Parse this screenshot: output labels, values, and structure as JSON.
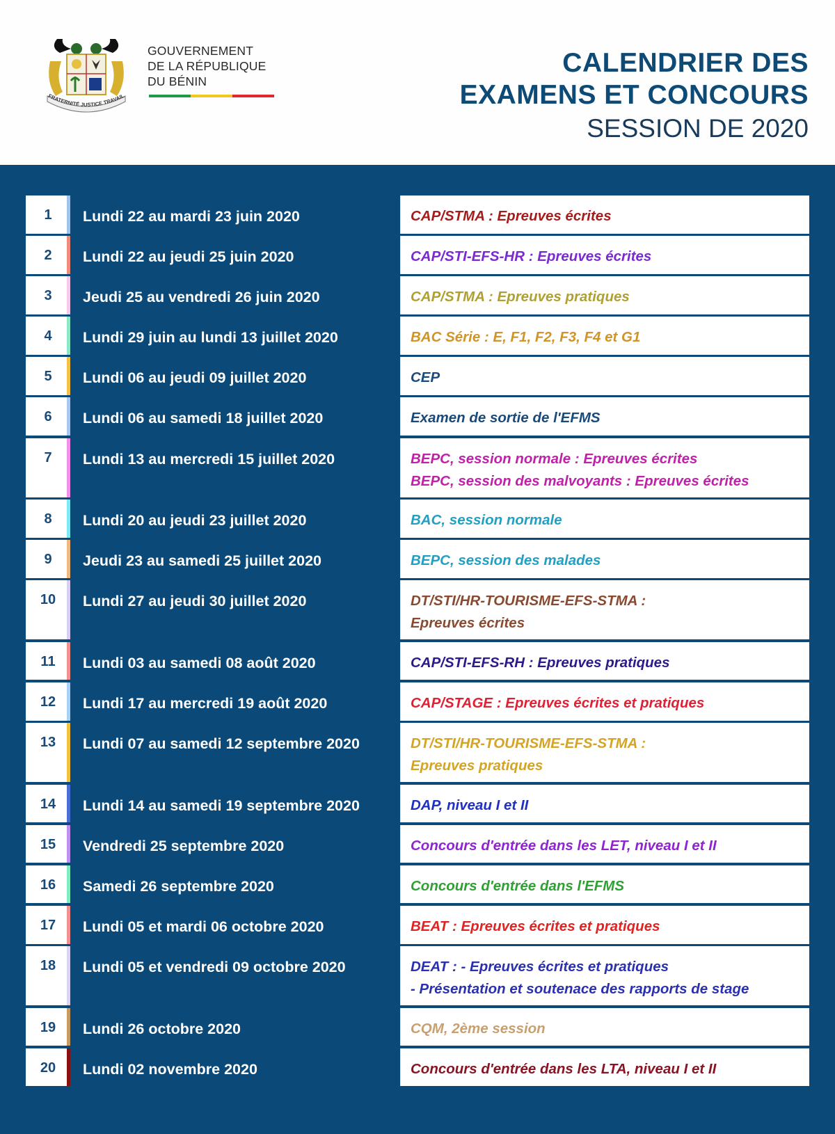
{
  "header": {
    "government": [
      "GOUVERNEMENT",
      "DE LA RÉPUBLIQUE",
      "DU BÉNIN"
    ],
    "flag_colors": [
      "#1f9a4a",
      "#f2c81e",
      "#e0262e"
    ],
    "title_line1": "CALENDRIER DES",
    "title_line2": "EXAMENS ET CONCOURS",
    "title_line3": "SESSION DE 2020",
    "crest_motto": "FRATERNITÉ JUSTICE TRAVAIL"
  },
  "colors": {
    "background": "#0b4a78",
    "title": "#0d4a76"
  },
  "rows": [
    {
      "num": "1",
      "date": "Lundi 22 au mardi 23 juin 2020",
      "event": "CAP/STMA : Epreuves écrites",
      "color": "#a51c1c",
      "accent": "#9ec4ee"
    },
    {
      "num": "2",
      "date": "Lundi 22 au jeudi 25 juin 2020",
      "event": "CAP/STI-EFS-HR : Epreuves écrites",
      "color": "#7a2ad0",
      "accent": "#f08a7a"
    },
    {
      "num": "3",
      "date": "Jeudi 25 au vendredi 26 juin 2020",
      "event": "CAP/STMA : Epreuves pratiques",
      "color": "#b0a032",
      "accent": "#f6c8ec"
    },
    {
      "num": "4",
      "date": "Lundi 29 juin au lundi 13 juillet 2020",
      "event": " BAC Série : E, F1, F2, F3, F4 et G1",
      "color": "#d09428",
      "accent": "#8ae8c8"
    },
    {
      "num": "5",
      "date": "Lundi 06 au jeudi 09 juillet 2020",
      "event": "CEP",
      "color": "#1a4a80",
      "accent": "#f4c048"
    },
    {
      "num": "6",
      "date": "Lundi 06 au samedi 18 juillet 2020",
      "event": "Examen de sortie de l'EFMS",
      "color": "#1a4a7a",
      "accent": "#a8c8f0"
    },
    {
      "num": "7",
      "date": "Lundi 13 au mercredi 15 juillet 2020",
      "event": "BEPC, session normale : Epreuves écrites\nBEPC, session des malvoyants : Epreuves écrites",
      "color": "#c021a8",
      "accent": "#f090e8",
      "double": true
    },
    {
      "num": "8",
      "date": "Lundi 20 au jeudi 23 juillet 2020",
      "event": "BAC, session normale",
      "color": "#22a0c4",
      "accent": "#80e8f0"
    },
    {
      "num": "9",
      "date": "Jeudi 23 au samedi 25 juillet 2020",
      "event": "BEPC, session des malades",
      "color": "#22a0c4",
      "accent": "#f0b880"
    },
    {
      "num": "10",
      "date": "Lundi 27 au jeudi 30 juillet 2020",
      "event": "DT/STI/HR-TOURISME-EFS-STMA :\nEpreuves écrites",
      "color": "#8a4a30",
      "accent": "#d8d0f4",
      "double": true
    },
    {
      "num": "11",
      "date": "Lundi 03 au samedi 08 août 2020",
      "event": "CAP/STI-EFS-RH : Epreuves pratiques",
      "color": "#2a1a8a",
      "accent": "#f09090"
    },
    {
      "num": "12",
      "date": "Lundi 17 au mercredi 19 août 2020",
      "event": "CAP/STAGE : Epreuves écrites et pratiques",
      "color": "#e02034",
      "accent": "#a8d0f4"
    },
    {
      "num": "13",
      "date": "Lundi 07 au samedi 12 septembre 2020",
      "event": "DT/STI/HR-TOURISME-EFS-STMA :\nEpreuves pratiques",
      "color": "#d4a424",
      "accent": "#f4c040",
      "double": true
    },
    {
      "num": "14",
      "date": "Lundi 14 au samedi 19 septembre 2020",
      "event": "DAP, niveau I et II",
      "color": "#2030c0",
      "accent": "#4a70d8"
    },
    {
      "num": "15",
      "date": "Vendredi 25 septembre 2020",
      "event": "Concours d'entrée dans les LET, niveau I et II",
      "color": "#9024d0",
      "accent": "#c090f0"
    },
    {
      "num": "16",
      "date": "Samedi 26 septembre 2020",
      "event": "Concours d'entrée dans l'EFMS",
      "color": "#30a034",
      "accent": "#80ecc0"
    },
    {
      "num": "17",
      "date": "Lundi 05 et mardi 06 octobre 2020",
      "event": "BEAT : Epreuves écrites et pratiques",
      "color": "#e02424",
      "accent": "#f09090"
    },
    {
      "num": "18",
      "date": "Lundi 05 et vendredi 09 octobre 2020",
      "event": "DEAT : - Epreuves écrites et pratiques\n- Présentation et soutenace des rapports de stage",
      "color": "#2a30b0",
      "accent": "#d8d4f4",
      "double": true
    },
    {
      "num": "19",
      "date": "Lundi 26 octobre 2020",
      "event": "CQM, 2ème session",
      "color": "#c8a070",
      "accent": "#c89a60"
    },
    {
      "num": "20",
      "date": "Lundi 02 novembre 2020",
      "event": "Concours d'entrée dans les LTA, niveau I et II",
      "color": "#8a1424",
      "accent": "#8a1010"
    }
  ]
}
